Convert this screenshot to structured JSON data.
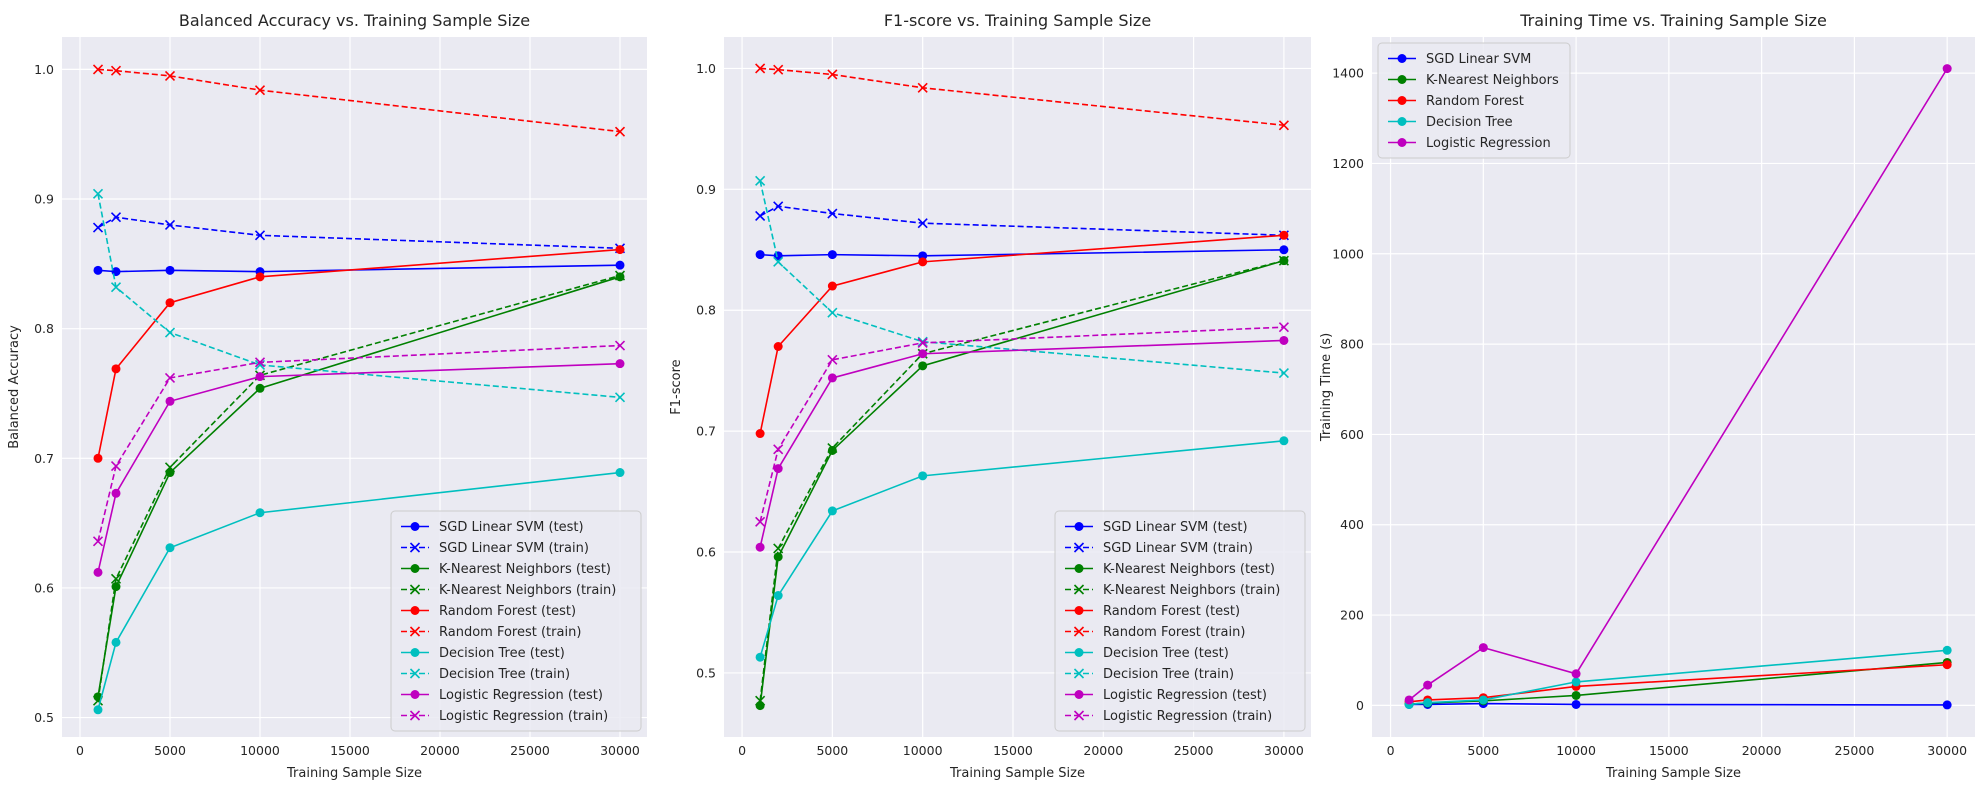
{
  "chart_data": [
    {
      "type": "line",
      "title": "Balanced Accuracy vs. Training Sample Size",
      "xlabel": "Training Sample Size",
      "ylabel": "Balanced Accuracy",
      "xlim": [
        -1000,
        31500
      ],
      "ylim": [
        0.485,
        1.025
      ],
      "xticks": [
        0,
        5000,
        10000,
        15000,
        20000,
        25000,
        30000
      ],
      "yticks": [
        0.5,
        0.6,
        0.7,
        0.8,
        0.9,
        1.0
      ],
      "ytick_labels": [
        "0.5",
        "0.6",
        "0.7",
        "0.8",
        "0.9",
        "1.0"
      ],
      "grid": true,
      "legend_position": "lower-right",
      "x": [
        1000,
        2000,
        5000,
        10000,
        30000
      ],
      "series": [
        {
          "name": "SGD Linear SVM (test)",
          "color": "#0000ff",
          "style": "solid",
          "marker": "circle",
          "values": [
            0.845,
            0.844,
            0.845,
            0.844,
            0.849
          ]
        },
        {
          "name": "SGD Linear SVM (train)",
          "color": "#0000ff",
          "style": "dashed",
          "marker": "x",
          "values": [
            0.878,
            0.886,
            0.88,
            0.872,
            0.862
          ]
        },
        {
          "name": "K-Nearest Neighbors (test)",
          "color": "#008000",
          "style": "solid",
          "marker": "circle",
          "values": [
            0.516,
            0.601,
            0.689,
            0.754,
            0.84
          ]
        },
        {
          "name": "K-Nearest Neighbors (train)",
          "color": "#008000",
          "style": "dashed",
          "marker": "x",
          "values": [
            0.513,
            0.607,
            0.693,
            0.764,
            0.841
          ]
        },
        {
          "name": "Random Forest (test)",
          "color": "#ff0000",
          "style": "solid",
          "marker": "circle",
          "values": [
            0.7,
            0.769,
            0.82,
            0.84,
            0.861
          ]
        },
        {
          "name": "Random Forest (train)",
          "color": "#ff0000",
          "style": "dashed",
          "marker": "x",
          "values": [
            1.0,
            0.999,
            0.995,
            0.984,
            0.952
          ]
        },
        {
          "name": "Decision Tree (test)",
          "color": "#00bfbf",
          "style": "solid",
          "marker": "circle",
          "values": [
            0.506,
            0.558,
            0.631,
            0.658,
            0.689
          ]
        },
        {
          "name": "Decision Tree (train)",
          "color": "#00bfbf",
          "style": "dashed",
          "marker": "x",
          "values": [
            0.904,
            0.832,
            0.797,
            0.772,
            0.747
          ]
        },
        {
          "name": "Logistic Regression (test)",
          "color": "#bf00bf",
          "style": "solid",
          "marker": "circle",
          "values": [
            0.612,
            0.673,
            0.744,
            0.763,
            0.773
          ]
        },
        {
          "name": "Logistic Regression (train)",
          "color": "#bf00bf",
          "style": "dashed",
          "marker": "x",
          "values": [
            0.636,
            0.694,
            0.762,
            0.774,
            0.787
          ]
        }
      ]
    },
    {
      "type": "line",
      "title": "F1-score vs. Training Sample Size",
      "xlabel": "Training Sample Size",
      "ylabel": "F1-score",
      "xlim": [
        -1000,
        31500
      ],
      "ylim": [
        0.447,
        1.026
      ],
      "xticks": [
        0,
        5000,
        10000,
        15000,
        20000,
        25000,
        30000
      ],
      "yticks": [
        0.5,
        0.6,
        0.7,
        0.8,
        0.9,
        1.0
      ],
      "ytick_labels": [
        "0.5",
        "0.6",
        "0.7",
        "0.8",
        "0.9",
        "1.0"
      ],
      "grid": true,
      "legend_position": "lower-right",
      "x": [
        1000,
        2000,
        5000,
        10000,
        30000
      ],
      "series": [
        {
          "name": "SGD Linear SVM (test)",
          "color": "#0000ff",
          "style": "solid",
          "marker": "circle",
          "values": [
            0.846,
            0.845,
            0.846,
            0.845,
            0.85
          ]
        },
        {
          "name": "SGD Linear SVM (train)",
          "color": "#0000ff",
          "style": "dashed",
          "marker": "x",
          "values": [
            0.878,
            0.886,
            0.88,
            0.872,
            0.862
          ]
        },
        {
          "name": "K-Nearest Neighbors (test)",
          "color": "#008000",
          "style": "solid",
          "marker": "circle",
          "values": [
            0.473,
            0.596,
            0.684,
            0.754,
            0.841
          ]
        },
        {
          "name": "K-Nearest Neighbors (train)",
          "color": "#008000",
          "style": "dashed",
          "marker": "x",
          "values": [
            0.477,
            0.603,
            0.686,
            0.764,
            0.841
          ]
        },
        {
          "name": "Random Forest (test)",
          "color": "#ff0000",
          "style": "solid",
          "marker": "circle",
          "values": [
            0.698,
            0.77,
            0.82,
            0.84,
            0.862
          ]
        },
        {
          "name": "Random Forest (train)",
          "color": "#ff0000",
          "style": "dashed",
          "marker": "x",
          "values": [
            1.0,
            0.999,
            0.995,
            0.984,
            0.953
          ]
        },
        {
          "name": "Decision Tree (test)",
          "color": "#00bfbf",
          "style": "solid",
          "marker": "circle",
          "values": [
            0.513,
            0.564,
            0.634,
            0.663,
            0.692
          ]
        },
        {
          "name": "Decision Tree (train)",
          "color": "#00bfbf",
          "style": "dashed",
          "marker": "x",
          "values": [
            0.907,
            0.84,
            0.798,
            0.774,
            0.748
          ]
        },
        {
          "name": "Logistic Regression (test)",
          "color": "#bf00bf",
          "style": "solid",
          "marker": "circle",
          "values": [
            0.604,
            0.669,
            0.744,
            0.764,
            0.775
          ]
        },
        {
          "name": "Logistic Regression (train)",
          "color": "#bf00bf",
          "style": "dashed",
          "marker": "x",
          "values": [
            0.625,
            0.685,
            0.759,
            0.773,
            0.786
          ]
        }
      ]
    },
    {
      "type": "line",
      "title": "Training Time vs. Training Sample Size",
      "xlabel": "Training Sample Size",
      "ylabel": "Training Time (s)",
      "xlim": [
        -1000,
        31500
      ],
      "ylim": [
        -70,
        1480
      ],
      "xticks": [
        0,
        5000,
        10000,
        15000,
        20000,
        25000,
        30000
      ],
      "yticks": [
        0,
        200,
        400,
        600,
        800,
        1000,
        1200,
        1400
      ],
      "ytick_labels": [
        "0",
        "200",
        "400",
        "600",
        "800",
        "1000",
        "1200",
        "1400"
      ],
      "grid": true,
      "legend_position": "top-left",
      "x": [
        1000,
        2000,
        5000,
        10000,
        30000
      ],
      "series": [
        {
          "name": "SGD Linear SVM",
          "color": "#0000ff",
          "style": "solid",
          "marker": "circle",
          "values": [
            2,
            2,
            4,
            2,
            1
          ]
        },
        {
          "name": "K-Nearest Neighbors",
          "color": "#008000",
          "style": "solid",
          "marker": "circle",
          "values": [
            3,
            5,
            10,
            22,
            95
          ]
        },
        {
          "name": "Random Forest",
          "color": "#ff0000",
          "style": "solid",
          "marker": "circle",
          "values": [
            8,
            12,
            17,
            42,
            90
          ]
        },
        {
          "name": "Decision Tree",
          "color": "#00bfbf",
          "style": "solid",
          "marker": "circle",
          "values": [
            2,
            6,
            12,
            52,
            122
          ]
        },
        {
          "name": "Logistic Regression",
          "color": "#bf00bf",
          "style": "solid",
          "marker": "circle",
          "values": [
            12,
            45,
            128,
            70,
            1410
          ]
        }
      ]
    }
  ]
}
